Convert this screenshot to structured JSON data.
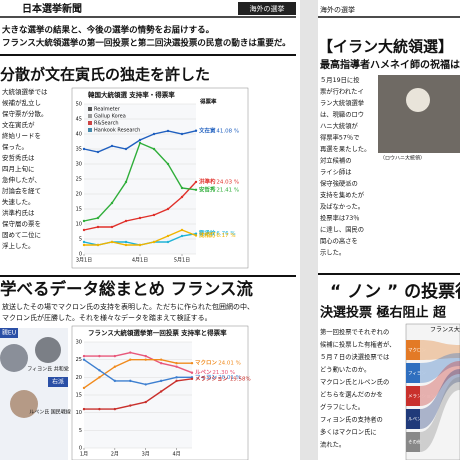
{
  "left_page": {
    "masthead": "日本選挙新聞",
    "section": "海外の選挙",
    "lede": [
      "大きな選挙の結果と、今後の選挙の情勢をお届けする。",
      "フランス大統領選挙の第一回投票と第二回決選投票の民意の動きは重要だ。"
    ],
    "headline1": "分散が文在寅氏の独走を許した",
    "body1": [
      "大統領選挙では",
      "候補が乱立し",
      "保守票が分散。",
      "文在寅氏が",
      "終始リードを",
      "保った。",
      "安哲秀氏は",
      "四月上旬に",
      "急伸したが、",
      "討論会を経て",
      "失速した。",
      "洪準杓氏は",
      "保守層の票を",
      "固めて二位に",
      "浮上した。"
    ],
    "korea_chart": {
      "type": "line",
      "title": "韓国大統領選 支持率・得票率",
      "legend": [
        "Realmeter",
        "Gallup Korea",
        "R&Search",
        "Hankook Research"
      ],
      "result_title": "得票率",
      "categories": [
        "3月1日",
        null,
        null,
        null,
        "4月1日",
        null,
        null,
        "5月1日",
        null
      ],
      "ylim": [
        0,
        50
      ],
      "yticks": [
        0,
        5,
        10,
        15,
        20,
        25,
        30,
        35,
        40,
        45,
        50
      ],
      "series": [
        {
          "name": "文在寅",
          "color": "#1f5fbf",
          "result_label": "41.08 %",
          "values": [
            35,
            34,
            36,
            35,
            38,
            40,
            41,
            40,
            41.08
          ]
        },
        {
          "name": "洪準杓",
          "color": "#e0302a",
          "result_label": "24.03 %",
          "values": [
            8,
            9,
            9,
            11,
            12,
            13,
            15,
            19,
            24.03
          ]
        },
        {
          "name": "安哲秀",
          "color": "#2fae3a",
          "result_label": "21.41 %",
          "values": [
            11,
            12,
            17,
            24,
            37,
            35,
            30,
            22,
            21.41
          ]
        },
        {
          "name": "劉承旼",
          "color": "#20b3d6",
          "result_label": "6.76 %",
          "values": [
            4,
            3,
            4,
            4,
            3,
            4,
            4,
            6,
            6.76
          ]
        },
        {
          "name": "沈相訂",
          "color": "#f0b400",
          "result_label": "6.17 %",
          "values": [
            3,
            3,
            4,
            3,
            3,
            4,
            6,
            8,
            6.17
          ]
        }
      ]
    },
    "headline2": "学べるデータ総まとめ フランス流",
    "lede2": [
      "放送したその場でマクロン氏の支持を表明した。ただちに作られた包囲網の中、",
      "マクロン氏が圧勝した。それを様々なデータを踏まえて検証する。"
    ],
    "photo_tags": [
      "親EU",
      "右派",
      "フィヨン氏 共和党",
      "ルペン氏 国民戦線"
    ],
    "france_chart": {
      "type": "line",
      "title": "フランス大統領選挙第一回投票 支持率と得票率",
      "categories": [
        "1月",
        null,
        "2月",
        null,
        "3月",
        null,
        "4月",
        null
      ],
      "ylim": [
        0,
        30
      ],
      "yticks": [
        0,
        5,
        10,
        15,
        20,
        25,
        30
      ],
      "series": [
        {
          "name": "ルペン",
          "color": "#e8577a",
          "result_label": "21.30 %",
          "values": [
            26,
            26,
            26,
            27,
            26,
            24,
            23,
            21.3
          ]
        },
        {
          "name": "マクロン",
          "color": "#f08a1c",
          "result_label": "24.01 %",
          "values": [
            17,
            20,
            23,
            25,
            25,
            25,
            24,
            24.01
          ]
        },
        {
          "name": "フィヨン",
          "color": "#3d7fd0",
          "result_label": "20.01 %",
          "values": [
            25,
            22,
            19,
            19,
            18,
            19,
            20,
            20.01
          ]
        },
        {
          "name": "メランション",
          "color": "#c9302c",
          "result_label": "19.58%",
          "values": [
            11,
            11,
            11,
            12,
            13,
            16,
            19,
            19.58
          ]
        }
      ]
    }
  },
  "right_page": {
    "section": "海外の選挙",
    "headline1": "【イラン大統領選】",
    "subhead1": "最高指導者ハメネイ師の祝福は",
    "body1": [
      "５月19日に投",
      "票が行われたイ",
      "ラン大統領選挙",
      "は、現職のロウ",
      "ハニ大統領が",
      "得票率57％で",
      "再選を果たした。",
      "対立候補の",
      "ライシ師は",
      "保守強硬派の",
      "支持を集めたが",
      "及ばなかった。",
      "投票率は73％",
      "に達し、国民の",
      "関心の高さを",
      "示した。"
    ],
    "photo_caption": "（ロウハニ大統領）",
    "headline2": "“ ノン ” の投票行",
    "subhead2": "決選投票 極右阻止 超",
    "body2": [
      "第一回投票でそれぞれの",
      "候補に投票した有権者が、",
      "５月７日の決選投票では",
      "どう動いたのか。",
      "マクロン氏とルペン氏の",
      "どちらを選んだのかを",
      "グラフにした。",
      "フィヨン氏の支持者の",
      "多くはマクロン氏に",
      "流れた。"
    ],
    "flow_chart": {
      "title": "フランス大",
      "labels": [
        "マクロン",
        "フィヨン",
        "メランション",
        "ルペン",
        "その他"
      ]
    }
  }
}
